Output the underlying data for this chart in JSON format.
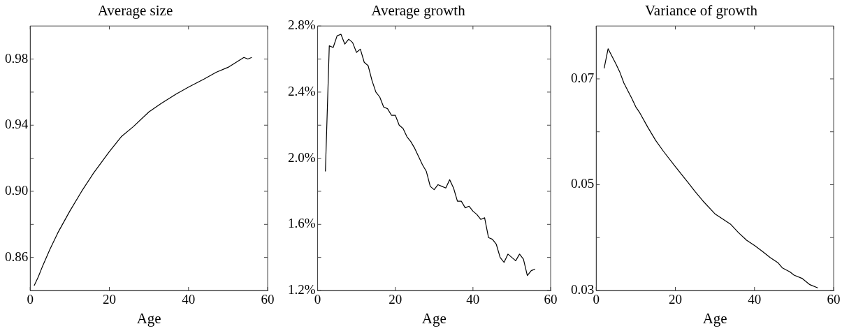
{
  "chart_data": [
    {
      "type": "line",
      "title": "Average size",
      "xlabel": "Age",
      "color": "#000000",
      "xlim": [
        0,
        60
      ],
      "xticks": [
        0,
        20,
        40,
        60
      ],
      "ylim": [
        0.84,
        1.0
      ],
      "yticks": [
        {
          "value": 0.86,
          "label": "0.86"
        },
        {
          "value": 0.88,
          "label": null
        },
        {
          "value": 0.9,
          "label": "0.90"
        },
        {
          "value": 0.92,
          "label": null
        },
        {
          "value": 0.94,
          "label": "0.94"
        },
        {
          "value": 0.96,
          "label": null
        },
        {
          "value": 0.98,
          "label": "0.98"
        }
      ],
      "x": [
        1,
        2,
        3,
        5,
        7,
        10,
        13,
        16,
        20,
        23,
        26,
        30,
        33,
        37,
        40,
        44,
        47,
        50,
        54,
        55,
        56
      ],
      "values": [
        0.843,
        0.848,
        0.854,
        0.865,
        0.875,
        0.888,
        0.9,
        0.911,
        0.924,
        0.933,
        0.939,
        0.948,
        0.953,
        0.959,
        0.963,
        0.968,
        0.972,
        0.975,
        0.981,
        0.98,
        0.981
      ]
    },
    {
      "type": "line",
      "title": "Average growth",
      "xlabel": "Age",
      "color": "#000000",
      "xlim": [
        0,
        60
      ],
      "xticks": [
        0,
        20,
        40,
        60
      ],
      "ylim": [
        1.2,
        2.8
      ],
      "yticks": [
        {
          "value": 1.2,
          "label": "1.2%"
        },
        {
          "value": 1.4,
          "label": null
        },
        {
          "value": 1.6,
          "label": "1.6%"
        },
        {
          "value": 1.8,
          "label": null
        },
        {
          "value": 2.0,
          "label": "2.0%"
        },
        {
          "value": 2.2,
          "label": null
        },
        {
          "value": 2.4,
          "label": "2.4%"
        },
        {
          "value": 2.6,
          "label": null
        },
        {
          "value": 2.8,
          "label": "2.8%"
        }
      ],
      "x": [
        2,
        3,
        4,
        5,
        6,
        7,
        8,
        9,
        10,
        11,
        12,
        13,
        14,
        15,
        16,
        17,
        18,
        19,
        20,
        21,
        22,
        23,
        24,
        25,
        26,
        27,
        28,
        29,
        30,
        31,
        32,
        33,
        34,
        35,
        36,
        37,
        38,
        39,
        40,
        41,
        42,
        43,
        44,
        45,
        46,
        47,
        48,
        49,
        50,
        51,
        52,
        53,
        54,
        55,
        56
      ],
      "values": [
        1.92,
        2.68,
        2.67,
        2.74,
        2.75,
        2.69,
        2.72,
        2.7,
        2.64,
        2.66,
        2.58,
        2.56,
        2.47,
        2.4,
        2.37,
        2.31,
        2.3,
        2.26,
        2.26,
        2.2,
        2.18,
        2.13,
        2.1,
        2.06,
        2.01,
        1.96,
        1.92,
        1.83,
        1.81,
        1.84,
        1.83,
        1.82,
        1.87,
        1.82,
        1.74,
        1.74,
        1.7,
        1.71,
        1.68,
        1.66,
        1.63,
        1.64,
        1.52,
        1.51,
        1.48,
        1.4,
        1.37,
        1.42,
        1.4,
        1.38,
        1.42,
        1.39,
        1.29,
        1.32,
        1.33
      ]
    },
    {
      "type": "line",
      "title": "Variance of growth",
      "xlabel": "Age",
      "color": "#000000",
      "xlim": [
        0,
        60
      ],
      "xticks": [
        0,
        20,
        40,
        60
      ],
      "ylim": [
        0.03,
        0.08
      ],
      "yticks": [
        0.03,
        {
          "value": 0.04,
          "label": null
        },
        0.05,
        {
          "value": 0.06,
          "label": null
        },
        0.07
      ],
      "x": [
        2,
        3,
        5,
        6,
        7,
        9,
        10,
        11,
        13,
        15,
        17,
        20,
        23,
        25,
        27,
        30,
        32,
        34,
        36,
        38,
        40,
        42,
        44,
        46,
        47,
        49,
        50,
        52,
        54,
        56
      ],
      "values": [
        0.072,
        0.0757,
        0.0728,
        0.0712,
        0.0692,
        0.0663,
        0.0647,
        0.0636,
        0.0609,
        0.0584,
        0.0563,
        0.0534,
        0.0506,
        0.0487,
        0.0469,
        0.0445,
        0.0435,
        0.0425,
        0.0409,
        0.0395,
        0.0385,
        0.0374,
        0.0362,
        0.0352,
        0.0343,
        0.0335,
        0.0329,
        0.0323,
        0.0311,
        0.0305
      ]
    }
  ]
}
